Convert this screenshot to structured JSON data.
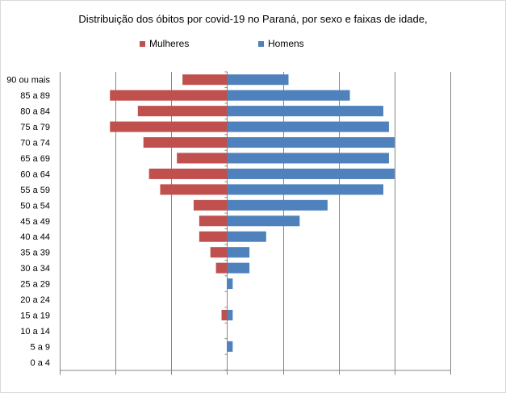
{
  "chart_data": {
    "type": "bar",
    "orientation": "horizontal",
    "title": "Distribuição dos óbitos por covid-19 no Paraná, por sexo e faixas de idade,",
    "categories": [
      "90 ou mais",
      "85 a 89",
      "80 a 84",
      "75 a 79",
      "70 a 74",
      "65 a 69",
      "60 a 64",
      "55 a 59",
      "50 a 54",
      "45 a 49",
      "40 a 44",
      "35 a 39",
      "30 a 34",
      "25 a 29",
      "20 a 24",
      "15 a 19",
      "10 a 14",
      "5 a 9",
      "0 a 4"
    ],
    "series": [
      {
        "name": "Mulheres",
        "color": "#c0504d",
        "values": [
          -8,
          -21,
          -16,
          -21,
          -15,
          -9,
          -14,
          -12,
          -6,
          -5,
          -5,
          -3,
          -2,
          0,
          0,
          -1,
          0,
          0,
          0
        ]
      },
      {
        "name": "Homens",
        "color": "#4f81bd",
        "values": [
          11,
          22,
          28,
          29,
          30,
          29,
          30,
          28,
          18,
          13,
          7,
          4,
          4,
          1,
          0,
          1,
          0,
          1,
          0
        ]
      }
    ],
    "xlim": [
      -30,
      40
    ],
    "xtick_step": 10,
    "grid": "vertical",
    "legend_position": "top"
  }
}
